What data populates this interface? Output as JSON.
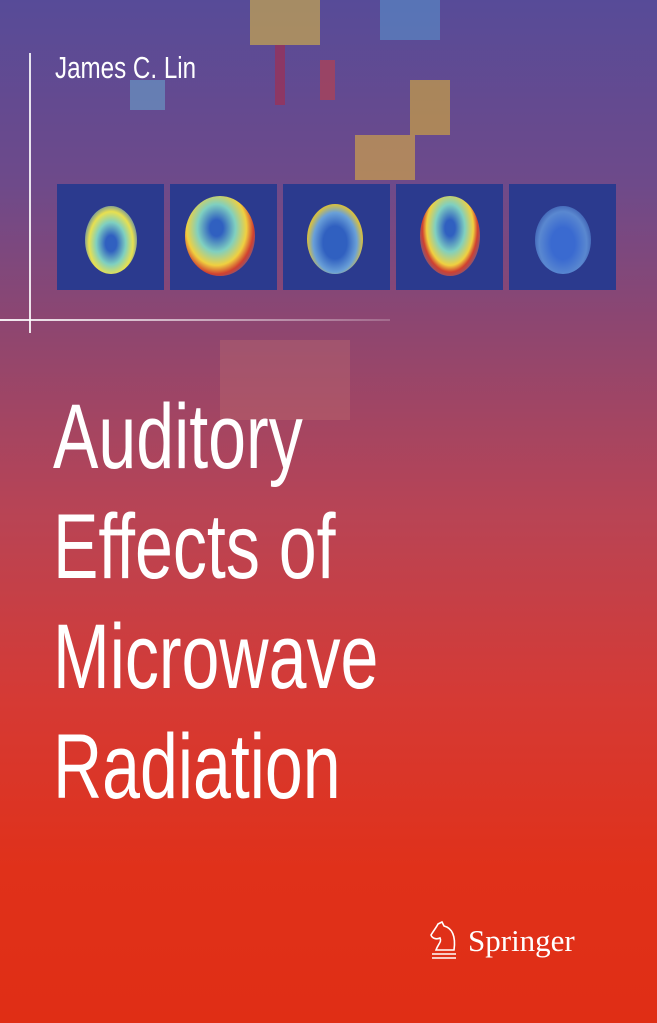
{
  "cover": {
    "author": "James C. Lin",
    "title_lines": [
      "Auditory",
      "Effects of",
      "Microwave",
      "Radiation"
    ],
    "publisher": "Springer",
    "publisher_logo_icon": "knight-horse-icon",
    "colors": {
      "top": "#574b98",
      "bottom": "#e02e15",
      "panel": "#2b3a8e",
      "text": "#ffffff"
    },
    "scan_panels": [
      "axial-scan",
      "sagittal-scan",
      "axial-scan",
      "coronal-scan",
      "axial-scan"
    ]
  }
}
